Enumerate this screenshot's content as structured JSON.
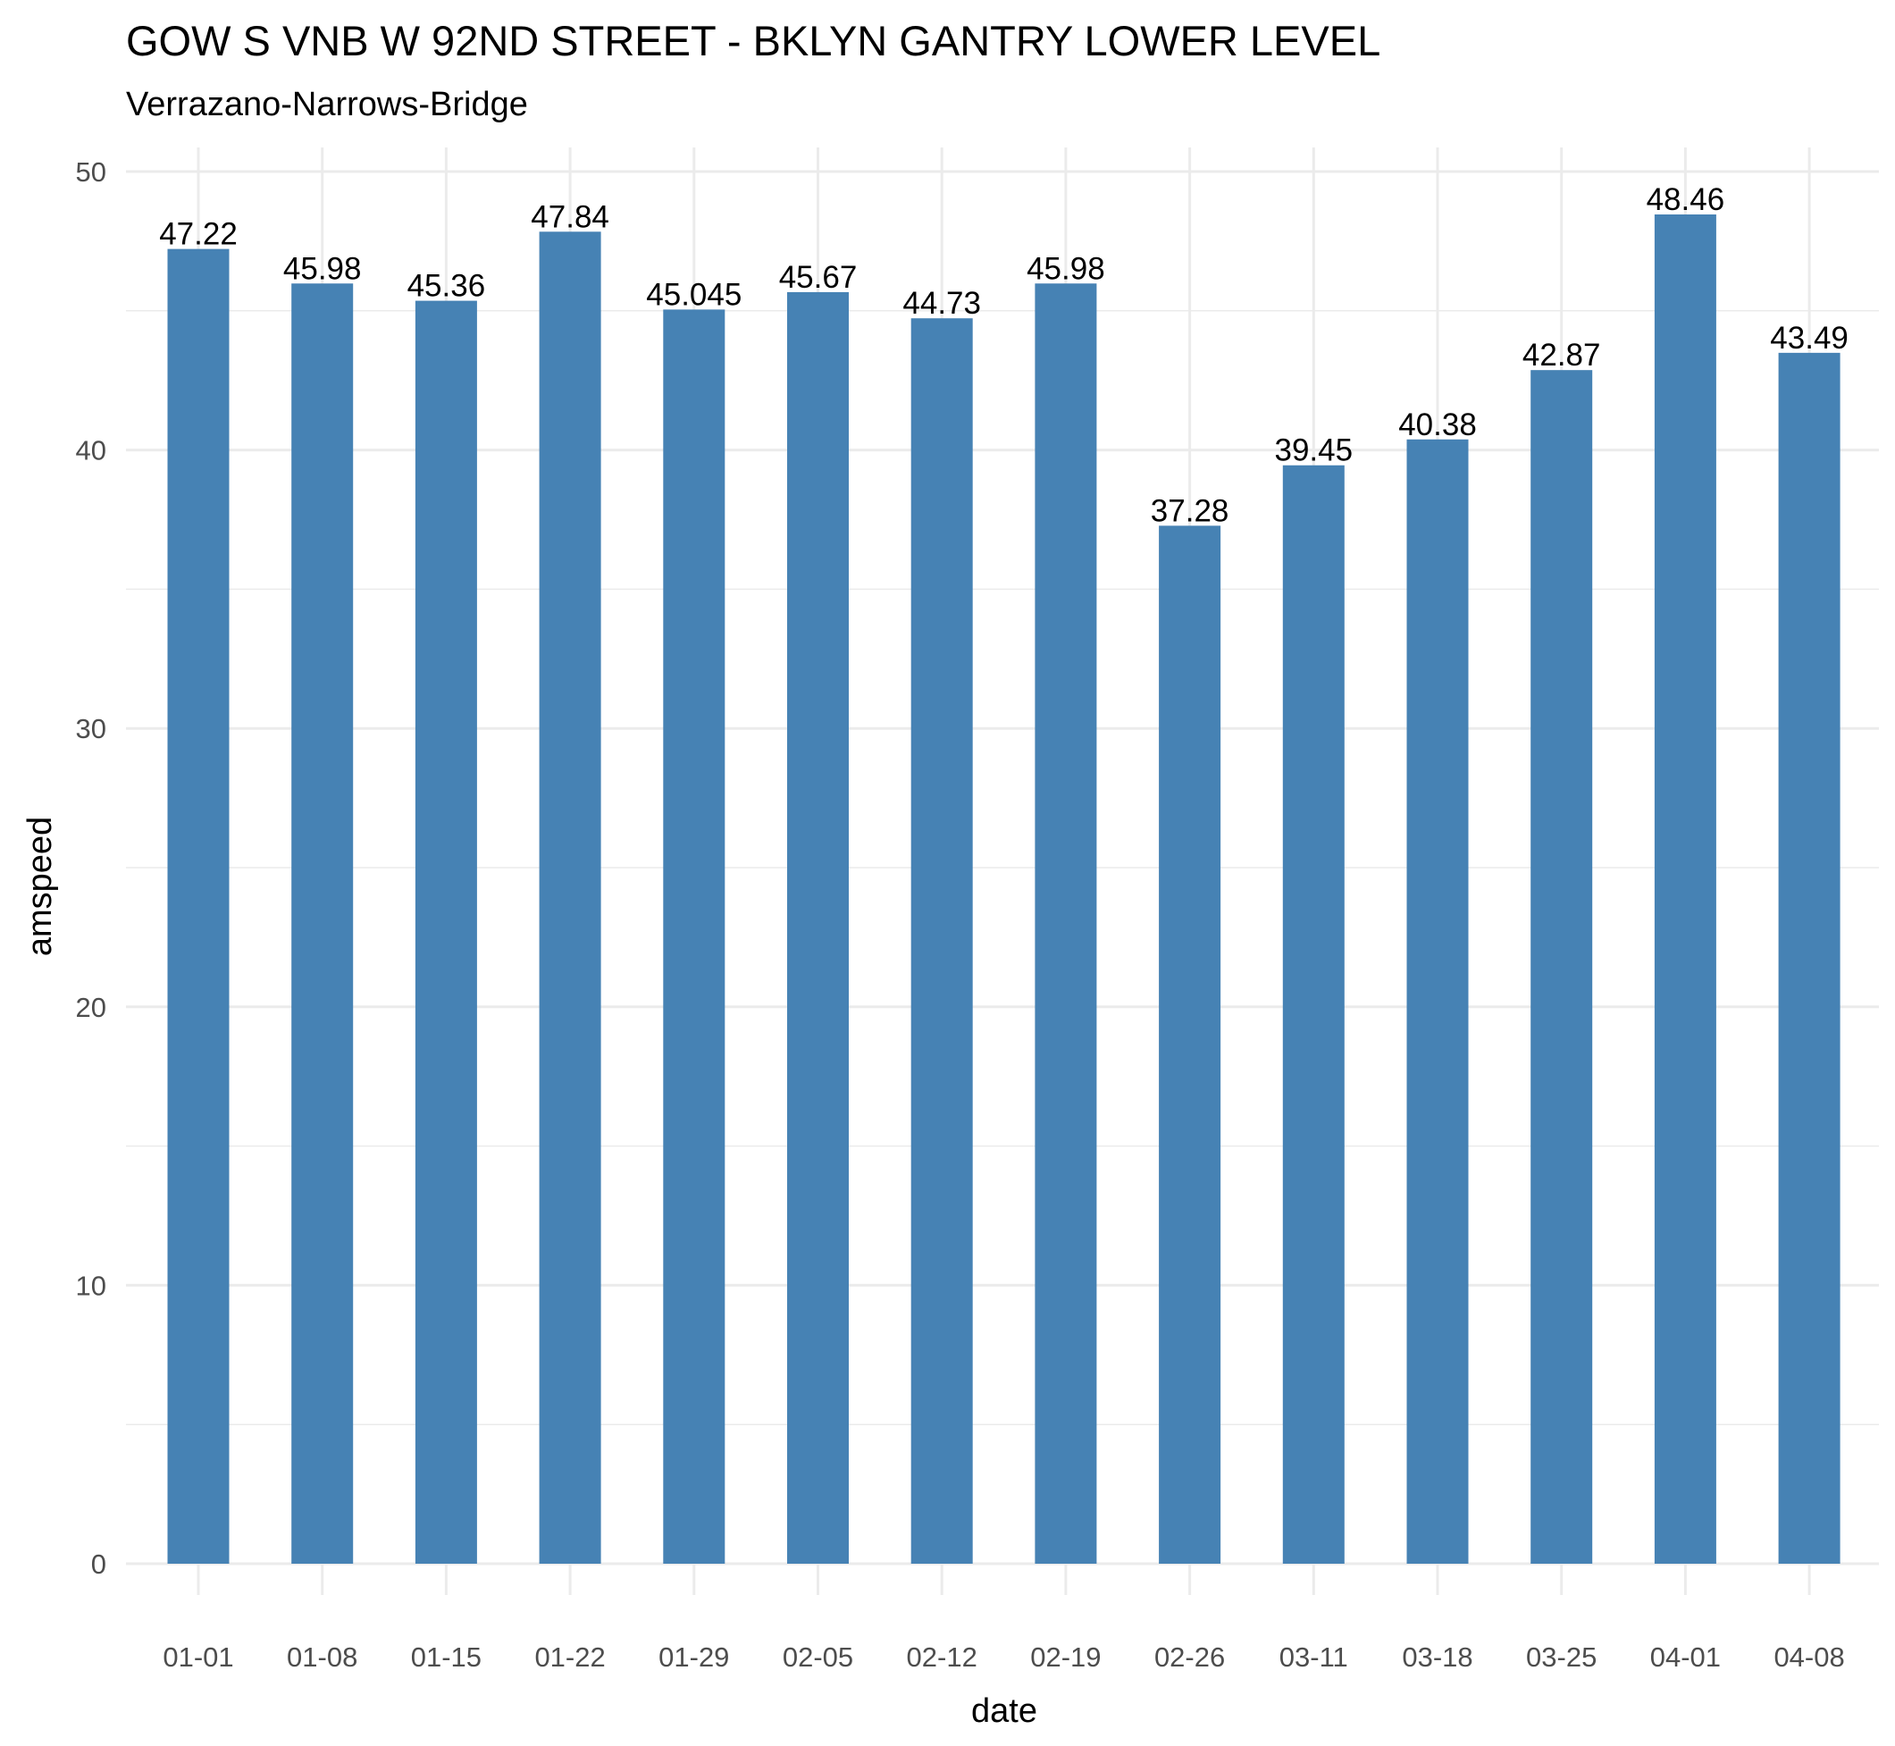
{
  "chart_data": {
    "type": "bar",
    "title": "GOW S VNB W 92ND STREET - BKLYN GANTRY LOWER LEVEL",
    "subtitle": "Verrazano-Narrows-Bridge",
    "xlabel": "date",
    "ylabel": "amspeed",
    "categories": [
      "01-01",
      "01-08",
      "01-15",
      "01-22",
      "01-29",
      "02-05",
      "02-12",
      "02-19",
      "02-26",
      "03-11",
      "03-18",
      "03-25",
      "04-01",
      "04-08"
    ],
    "values": [
      47.22,
      45.98,
      45.36,
      47.84,
      45.045,
      45.67,
      44.73,
      45.98,
      37.28,
      39.45,
      40.38,
      42.87,
      48.46,
      43.49
    ],
    "value_labels": [
      "47.22",
      "45.98",
      "45.36",
      "47.84",
      "45.045",
      "45.67",
      "44.73",
      "45.98",
      "37.28",
      "39.45",
      "40.38",
      "42.87",
      "48.46",
      "43.49"
    ],
    "ylim": [
      0,
      50
    ],
    "yticks": [
      0,
      10,
      20,
      30,
      40,
      50
    ],
    "ytick_labels": [
      "0",
      "10",
      "20",
      "30",
      "40",
      "50"
    ],
    "grid": true,
    "legend": "none",
    "colors": {
      "bar": "#4682B4",
      "grid": "#EBEBEB",
      "text": "#000000",
      "tick_text": "#4D4D4D"
    }
  }
}
